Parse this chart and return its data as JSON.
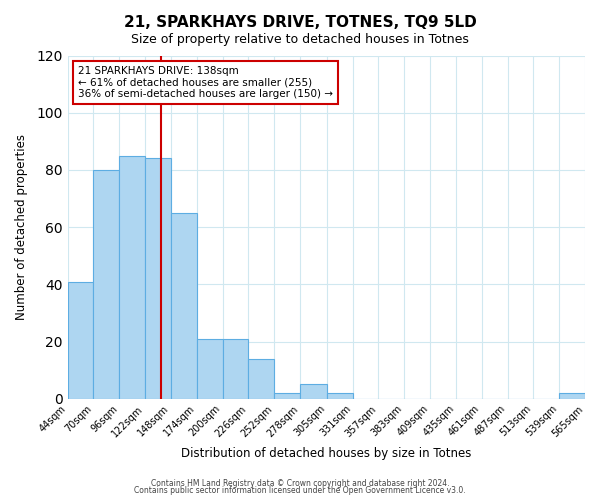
{
  "title_line1": "21, SPARKHAYS DRIVE, TOTNES, TQ9 5LD",
  "title_line2": "Size of property relative to detached houses in Totnes",
  "xlabel": "Distribution of detached houses by size in Totnes",
  "ylabel": "Number of detached properties",
  "bar_edges": [
    44,
    70,
    96,
    122,
    148,
    174,
    200,
    226,
    252,
    278,
    305,
    331,
    357,
    383,
    409,
    435,
    461,
    487,
    513,
    539,
    565
  ],
  "bar_heights": [
    41,
    80,
    85,
    84,
    65,
    21,
    21,
    14,
    2,
    5,
    2,
    0,
    0,
    0,
    0,
    0,
    0,
    0,
    0,
    2
  ],
  "bar_color": "#aed6f1",
  "bar_edge_color": "#5dade2",
  "reference_line_x": 138,
  "reference_line_color": "#cc0000",
  "annotation_title": "21 SPARKHAYS DRIVE: 138sqm",
  "annotation_line1": "← 61% of detached houses are smaller (255)",
  "annotation_line2": "36% of semi-detached houses are larger (150) →",
  "annotation_box_color": "#ffffff",
  "annotation_box_edge_color": "#cc0000",
  "ylim": [
    0,
    120
  ],
  "yticks": [
    0,
    20,
    40,
    60,
    80,
    100,
    120
  ],
  "tick_labels": [
    "44sqm",
    "70sqm",
    "96sqm",
    "122sqm",
    "148sqm",
    "174sqm",
    "200sqm",
    "226sqm",
    "252sqm",
    "278sqm",
    "305sqm",
    "331sqm",
    "357sqm",
    "383sqm",
    "409sqm",
    "435sqm",
    "461sqm",
    "487sqm",
    "513sqm",
    "539sqm",
    "565sqm"
  ],
  "footer_line1": "Contains HM Land Registry data © Crown copyright and database right 2024.",
  "footer_line2": "Contains public sector information licensed under the Open Government Licence v3.0.",
  "background_color": "#ffffff",
  "grid_color": "#d0e8f0"
}
